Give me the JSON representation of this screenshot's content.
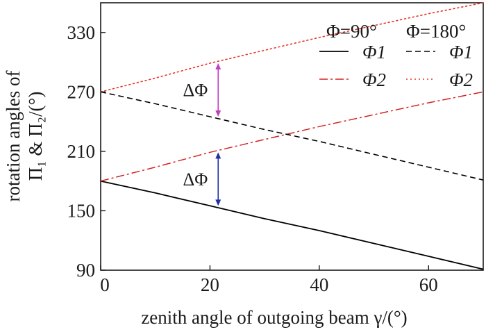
{
  "chart_data": {
    "type": "line",
    "xlabel": "zenith angle of outgoing beam γ/(°)",
    "ylabel_line1": "rotation angles of",
    "ylabel_line2": "Π₁ & Π₂/(°)",
    "xlim": [
      0,
      70
    ],
    "ylim": [
      90,
      360
    ],
    "xticks": [
      0,
      20,
      40,
      60
    ],
    "yticks": [
      90,
      150,
      210,
      270,
      330
    ],
    "grid": false,
    "legend_position": "top-right",
    "legend": {
      "group_headers": [
        "Φ=90°",
        "Φ=180°"
      ],
      "entries": [
        {
          "label": "Φ1",
          "series_index": 0
        },
        {
          "label": "Φ1",
          "series_index": 2
        },
        {
          "label": "Φ2",
          "series_index": 1
        },
        {
          "label": "Φ2",
          "series_index": 3
        }
      ]
    },
    "series": [
      {
        "name": "Φ1",
        "group": "Φ=90°",
        "color": "#000000",
        "style": "solid",
        "x": [
          0,
          10,
          20,
          30,
          40,
          50,
          60,
          70
        ],
        "y": [
          180,
          168,
          155,
          142,
          130,
          117,
          104,
          91
        ]
      },
      {
        "name": "Φ2",
        "group": "Φ=90°",
        "color": "#d62020",
        "style": "dashdot",
        "x": [
          0,
          10,
          20,
          30,
          40,
          50,
          60,
          70
        ],
        "y": [
          180,
          194,
          209,
          222,
          235,
          247,
          259,
          270
        ]
      },
      {
        "name": "Φ1",
        "group": "Φ=180°",
        "color": "#000000",
        "style": "dashed",
        "x": [
          0,
          10,
          20,
          30,
          40,
          50,
          60,
          70
        ],
        "y": [
          270,
          258,
          245,
          232,
          220,
          207,
          194,
          181
        ]
      },
      {
        "name": "Φ2",
        "group": "Φ=180°",
        "color": "#e8342a",
        "style": "dotted",
        "x": [
          0,
          10,
          20,
          30,
          40,
          50,
          60,
          70
        ],
        "y": [
          270,
          284,
          299,
          312,
          325,
          337,
          349,
          360
        ]
      }
    ],
    "annotations": [
      {
        "text": "ΔΦ",
        "x": 21.5,
        "y_from": 299,
        "y_to": 245,
        "color": "#c040c0"
      },
      {
        "text": "ΔΦ",
        "x": 21.5,
        "y_from": 209,
        "y_to": 155,
        "color": "#2030a0"
      }
    ]
  }
}
